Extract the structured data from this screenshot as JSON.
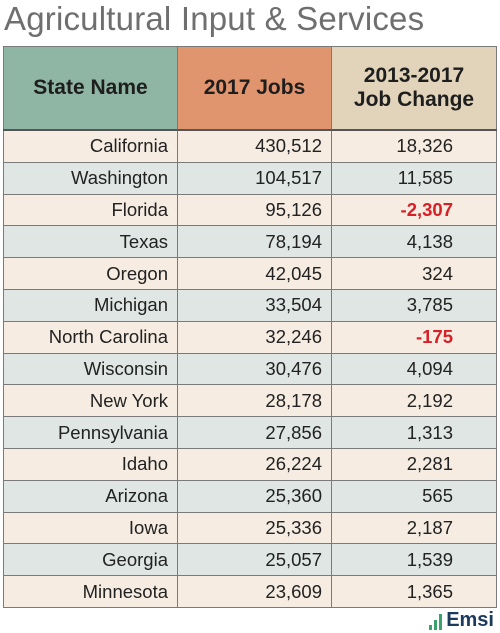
{
  "title": "Agricultural Input & Services",
  "table": {
    "headers": [
      "State Name",
      "2017 Jobs",
      "2013-2017\nJob Change"
    ],
    "header_colors": [
      "#8fb5a5",
      "#e0956f",
      "#e1d4ba"
    ],
    "negative_color": "#d61f26",
    "rows": [
      {
        "state": "California",
        "jobs": "430,512",
        "change": "18,326",
        "negative": false
      },
      {
        "state": "Washington",
        "jobs": "104,517",
        "change": "11,585",
        "negative": false
      },
      {
        "state": "Florida",
        "jobs": "95,126",
        "change": "-2,307",
        "negative": true
      },
      {
        "state": "Texas",
        "jobs": "78,194",
        "change": "4,138",
        "negative": false
      },
      {
        "state": "Oregon",
        "jobs": "42,045",
        "change": "324",
        "negative": false
      },
      {
        "state": "Michigan",
        "jobs": "33,504",
        "change": "3,785",
        "negative": false
      },
      {
        "state": "North Carolina",
        "jobs": "32,246",
        "change": "-175",
        "negative": true
      },
      {
        "state": "Wisconsin",
        "jobs": "30,476",
        "change": "4,094",
        "negative": false
      },
      {
        "state": "New York",
        "jobs": "28,178",
        "change": "2,192",
        "negative": false
      },
      {
        "state": "Pennsylvania",
        "jobs": "27,856",
        "change": "1,313",
        "negative": false
      },
      {
        "state": "Idaho",
        "jobs": "26,224",
        "change": "2,281",
        "negative": false
      },
      {
        "state": "Arizona",
        "jobs": "25,360",
        "change": "565",
        "negative": false
      },
      {
        "state": "Iowa",
        "jobs": "25,336",
        "change": "2,187",
        "negative": false
      },
      {
        "state": "Georgia",
        "jobs": "25,057",
        "change": "1,539",
        "negative": false
      },
      {
        "state": "Minnesota",
        "jobs": "23,609",
        "change": "1,365",
        "negative": false
      }
    ]
  },
  "logo": {
    "text": "Emsi",
    "icon": "bar-chart-logo-icon"
  }
}
